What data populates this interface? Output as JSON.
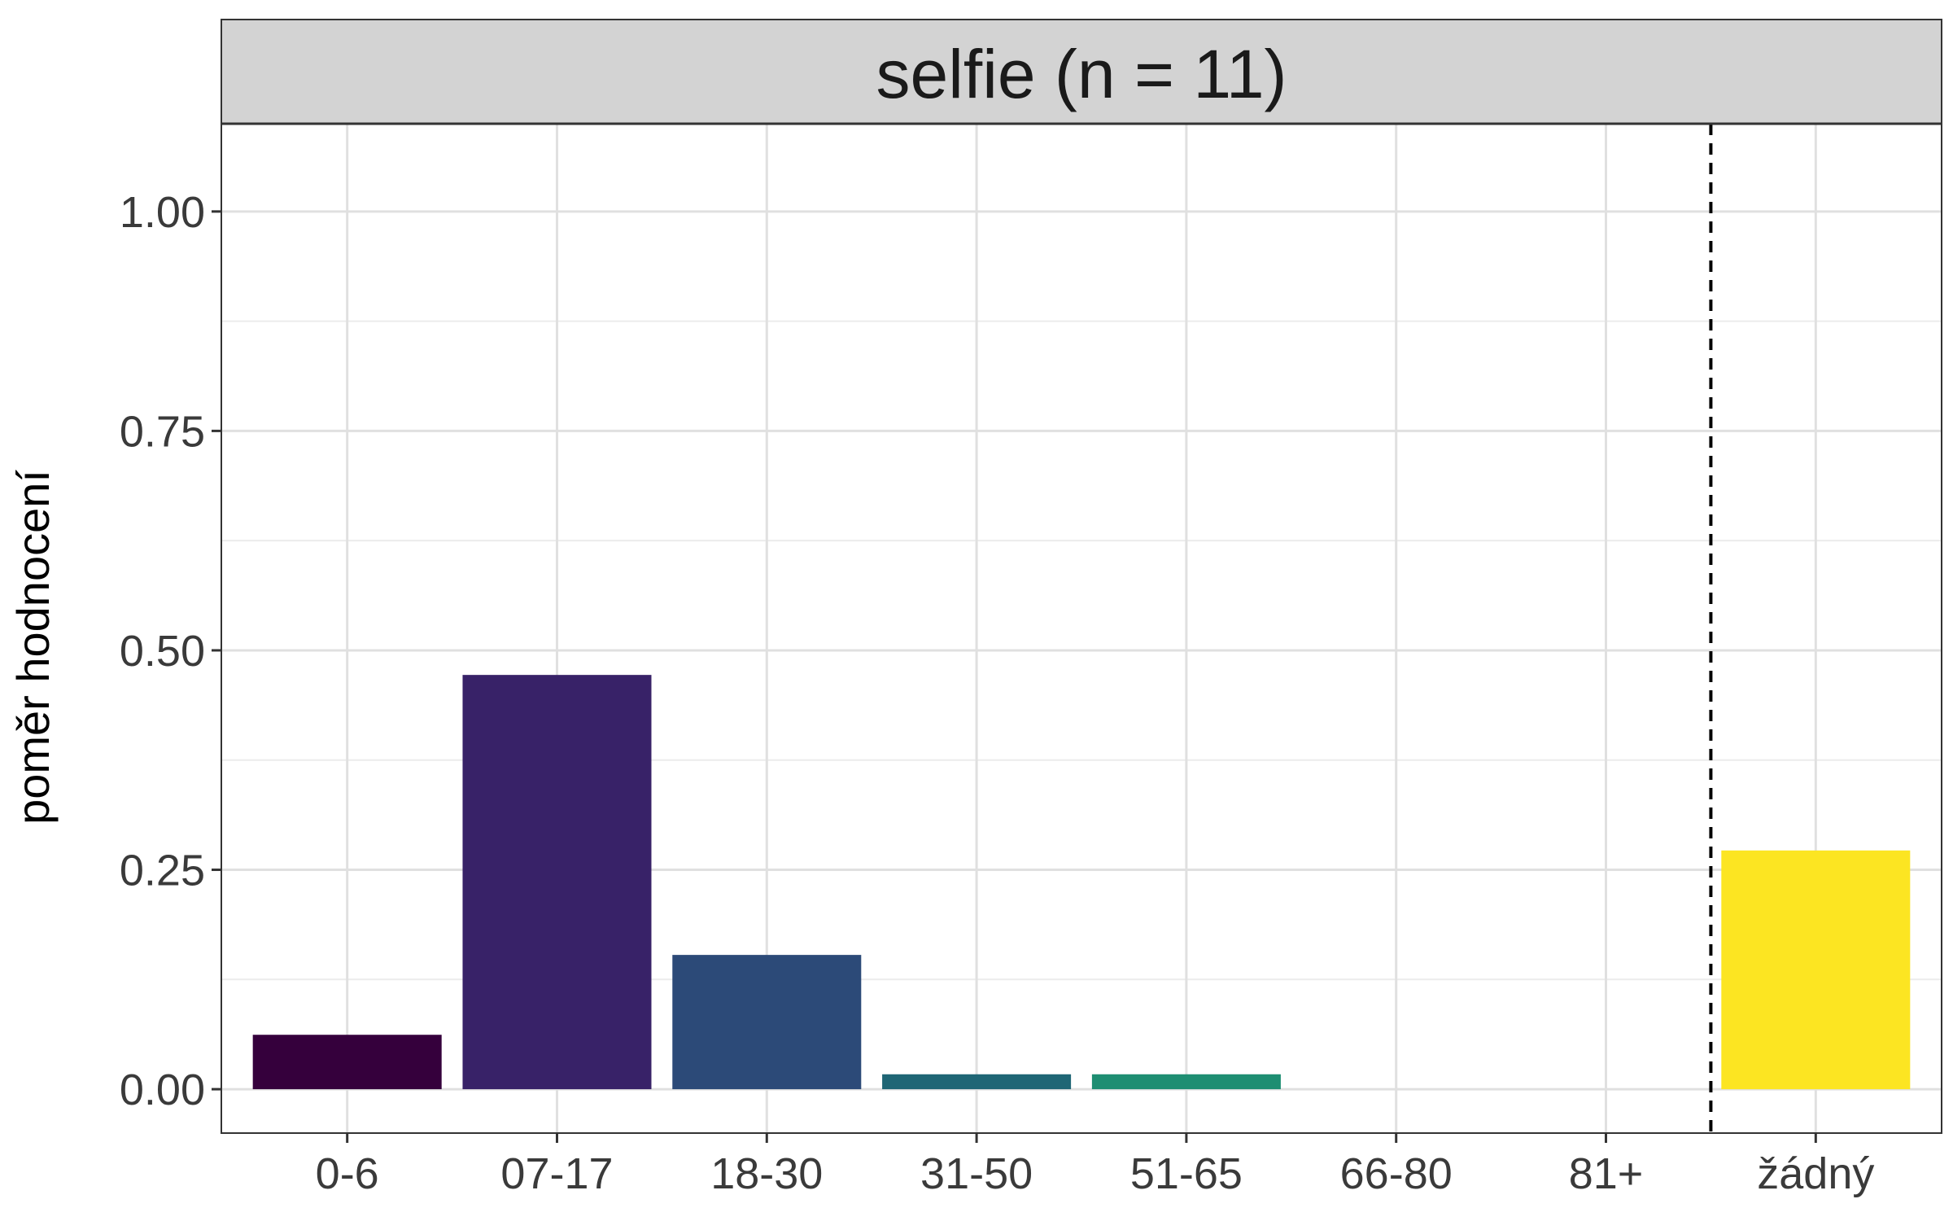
{
  "chart_data": {
    "type": "bar",
    "title": "selfie (n = 11)",
    "xlabel": "",
    "ylabel": "poměr hodnocení",
    "categories": [
      "0-6",
      "07-17",
      "18-30",
      "31-50",
      "51-65",
      "66-80",
      "81+",
      "žádný"
    ],
    "values": [
      0.062,
      0.472,
      0.153,
      0.017,
      0.017,
      0.0,
      0.0,
      0.272
    ],
    "colors": [
      "#35003c",
      "#382268",
      "#2c4a78",
      "#1f6675",
      "#1e8e72",
      "#5ec962",
      "#aadc32",
      "#fce522"
    ],
    "ylim": [
      -0.05,
      1.1
    ],
    "yticks": [
      0.0,
      0.25,
      0.5,
      0.75,
      1.0
    ],
    "ytick_labels": [
      "0.00",
      "0.25",
      "0.50",
      "0.75",
      "1.00"
    ],
    "separator_after_category": "81+",
    "grid": true,
    "legend": "none"
  }
}
